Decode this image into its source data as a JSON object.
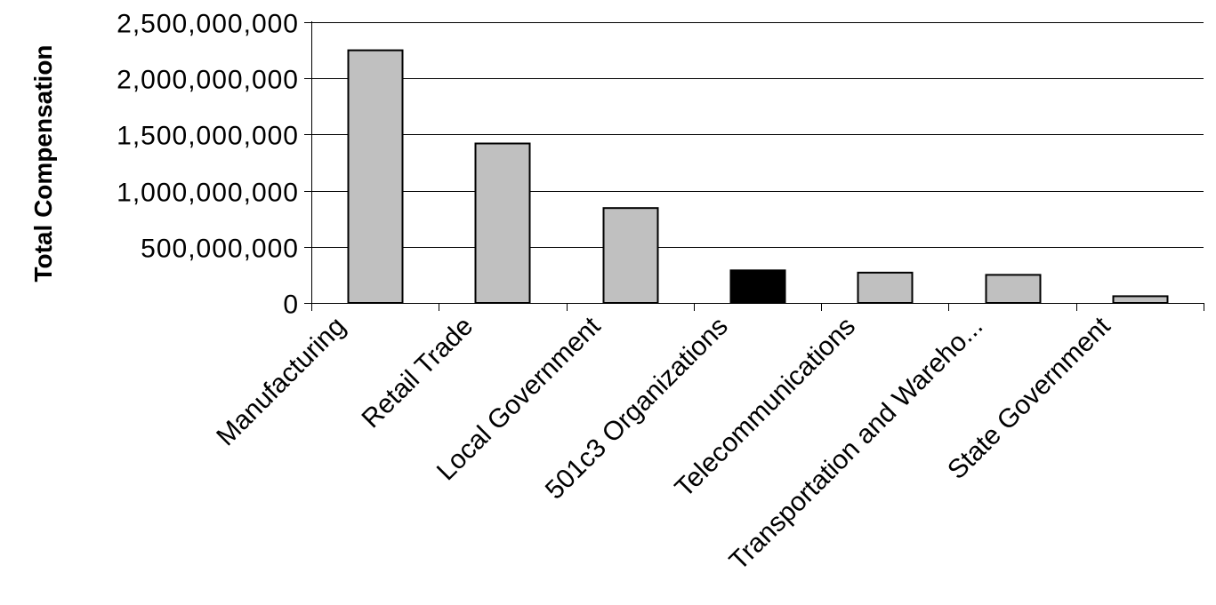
{
  "chart_data": {
    "type": "bar",
    "title": "",
    "xlabel": "",
    "ylabel": "Total Compensation",
    "ylim": [
      0,
      2500000000
    ],
    "y_ticks": [
      0,
      500000000,
      1000000000,
      1500000000,
      2000000000,
      2500000000
    ],
    "y_tick_labels": [
      "0",
      "500,000,000",
      "1,000,000,000",
      "1,500,000,000",
      "2,000,000,000",
      "2,500,000,000"
    ],
    "grid": "horizontal major gridlines",
    "legend": "none",
    "categories": [
      "Manufacturing",
      "Retail Trade",
      "Local Government",
      "501c3 Organizations",
      "Telecommunications",
      "Transportation and Wareho...",
      "State Government"
    ],
    "values": [
      2250000000,
      1420000000,
      845000000,
      290000000,
      270000000,
      250000000,
      60000000
    ],
    "bar_colors": [
      "#c0c0c0",
      "#c0c0c0",
      "#c0c0c0",
      "#000000",
      "#c0c0c0",
      "#c0c0c0",
      "#c0c0c0"
    ],
    "bar_outline": "#000000",
    "highlight_category": "501c3 Organizations"
  }
}
